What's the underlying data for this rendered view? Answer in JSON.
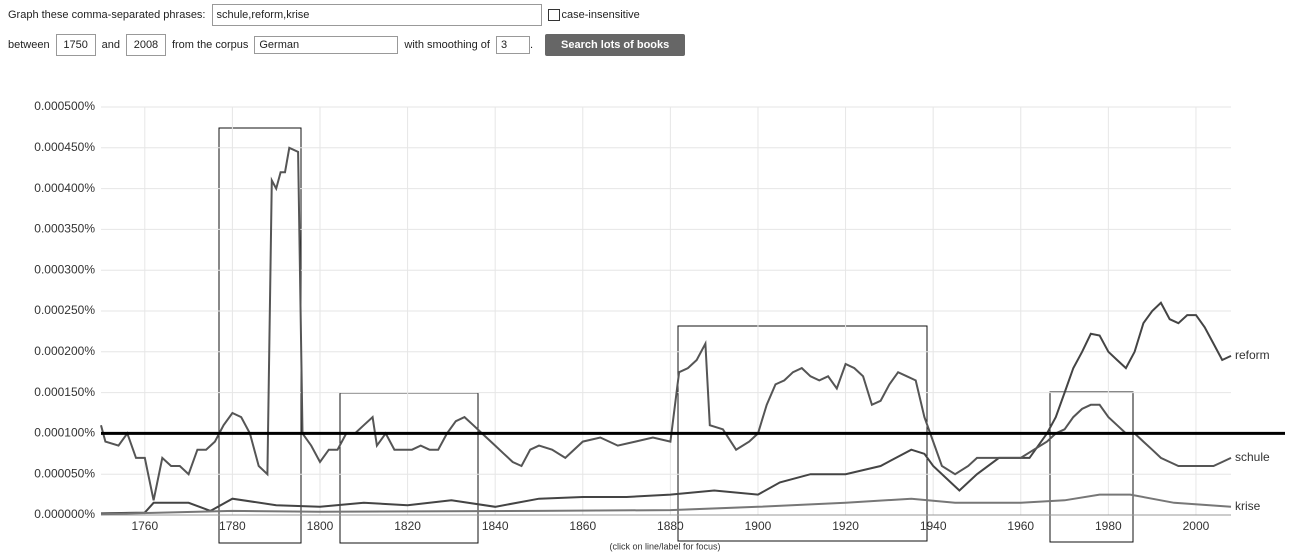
{
  "form": {
    "phrases_label": "Graph these comma-separated phrases:",
    "phrases": "schule,reform,krise",
    "case_label": "case-insensitive",
    "between": "between",
    "start_year": "1750",
    "and": "and",
    "end_year": "2008",
    "corpus_label": "from the corpus",
    "corpus": "German",
    "smoothing_label": "with smoothing of",
    "smoothing": "3",
    "period": ".",
    "button": "Search lots of books"
  },
  "footer": "(click on line/label for focus)",
  "chart_data": {
    "type": "line",
    "xlim": [
      1750,
      2008
    ],
    "xticks": [
      1760,
      1780,
      1800,
      1820,
      1840,
      1860,
      1880,
      1900,
      1920,
      1940,
      1960,
      1980,
      2000
    ],
    "ylim": [
      0,
      0.0005
    ],
    "yticks": [
      {
        "value": 0,
        "label": "0.000000%"
      },
      {
        "value": 5e-05,
        "label": "0.000050%"
      },
      {
        "value": 0.0001,
        "label": "0.000100%"
      },
      {
        "value": 0.00015,
        "label": "0.000150%"
      },
      {
        "value": 0.0002,
        "label": "0.000200%"
      },
      {
        "value": 0.00025,
        "label": "0.000250%"
      },
      {
        "value": 0.0003,
        "label": "0.000300%"
      },
      {
        "value": 0.00035,
        "label": "0.000350%"
      },
      {
        "value": 0.0004,
        "label": "0.000400%"
      },
      {
        "value": 0.00045,
        "label": "0.000450%"
      },
      {
        "value": 0.0005,
        "label": "0.000500%"
      }
    ],
    "grid": true,
    "reference_line": 0.0001,
    "series": [
      {
        "name": "reform",
        "color": "#444444",
        "x": [
          1750,
          1760,
          1762,
          1770,
          1775,
          1780,
          1790,
          1800,
          1810,
          1820,
          1830,
          1840,
          1850,
          1860,
          1870,
          1880,
          1890,
          1900,
          1905,
          1912,
          1920,
          1928,
          1935,
          1938,
          1940,
          1944,
          1946,
          1950,
          1955,
          1962,
          1966,
          1968,
          1970,
          1972,
          1974,
          1976,
          1978,
          1980,
          1982,
          1984,
          1986,
          1988,
          1990,
          1992,
          1994,
          1996,
          1998,
          2000,
          2002,
          2004,
          2006,
          2008
        ],
        "values": [
          2e-06,
          3e-06,
          1.5e-05,
          1.5e-05,
          5e-06,
          2e-05,
          1.2e-05,
          1e-05,
          1.5e-05,
          1.2e-05,
          1.8e-05,
          1e-05,
          2e-05,
          2.2e-05,
          2.2e-05,
          2.5e-05,
          3e-05,
          2.5e-05,
          4e-05,
          5e-05,
          5e-05,
          6e-05,
          8e-05,
          7.5e-05,
          6e-05,
          4e-05,
          3e-05,
          5e-05,
          7e-05,
          7e-05,
          0.0001,
          0.00012,
          0.00015,
          0.00018,
          0.0002,
          0.000222,
          0.00022,
          0.0002,
          0.00019,
          0.00018,
          0.0002,
          0.000235,
          0.00025,
          0.00026,
          0.00024,
          0.000235,
          0.000245,
          0.000245,
          0.00023,
          0.00021,
          0.00019,
          0.000195
        ]
      },
      {
        "name": "schule",
        "color": "#555555",
        "x": [
          1750,
          1751,
          1754,
          1756,
          1758,
          1760,
          1762,
          1764,
          1766,
          1768,
          1770,
          1772,
          1774,
          1776,
          1778,
          1780,
          1782,
          1784,
          1786,
          1788,
          1789,
          1790,
          1791,
          1792,
          1793,
          1795,
          1796,
          1798,
          1800,
          1802,
          1804,
          1806,
          1808,
          1810,
          1812,
          1813,
          1815,
          1817,
          1819,
          1821,
          1823,
          1825,
          1827,
          1829,
          1831,
          1833,
          1835,
          1837,
          1840,
          1842,
          1844,
          1846,
          1848,
          1850,
          1853,
          1856,
          1860,
          1864,
          1868,
          1872,
          1876,
          1880,
          1882,
          1884,
          1886,
          1888,
          1889,
          1892,
          1895,
          1898,
          1900,
          1902,
          1904,
          1906,
          1908,
          1910,
          1912,
          1914,
          1916,
          1918,
          1920,
          1922,
          1924,
          1926,
          1928,
          1930,
          1932,
          1934,
          1936,
          1938,
          1940,
          1942,
          1945,
          1948,
          1950,
          1955,
          1960,
          1963,
          1966,
          1968,
          1970,
          1972,
          1974,
          1976,
          1978,
          1980,
          1982,
          1984,
          1986,
          1988,
          1990,
          1992,
          1994,
          1996,
          1998,
          2000,
          2002,
          2004,
          2006,
          2008
        ],
        "values": [
          0.00011,
          9e-05,
          8.5e-05,
          0.0001,
          7e-05,
          7e-05,
          1.8e-05,
          7e-05,
          6e-05,
          6e-05,
          5e-05,
          8e-05,
          8e-05,
          9e-05,
          0.00011,
          0.000125,
          0.00012,
          0.0001,
          6e-05,
          5e-05,
          0.00041,
          0.0004,
          0.00042,
          0.00042,
          0.00045,
          0.000445,
          0.0001,
          8.5e-05,
          6.5e-05,
          8e-05,
          8e-05,
          0.0001,
          0.0001,
          0.00011,
          0.00012,
          8.5e-05,
          0.0001,
          8e-05,
          8e-05,
          8e-05,
          8.5e-05,
          8e-05,
          8e-05,
          0.0001,
          0.000115,
          0.00012,
          0.00011,
          0.0001,
          8.5e-05,
          7.5e-05,
          6.5e-05,
          6e-05,
          8e-05,
          8.5e-05,
          8e-05,
          7e-05,
          9e-05,
          9.5e-05,
          8.5e-05,
          9e-05,
          9.5e-05,
          9e-05,
          0.000175,
          0.00018,
          0.00019,
          0.00021,
          0.00011,
          0.000105,
          8e-05,
          9e-05,
          0.0001,
          0.000135,
          0.00016,
          0.000165,
          0.000175,
          0.00018,
          0.00017,
          0.000165,
          0.00017,
          0.000155,
          0.000185,
          0.00018,
          0.00017,
          0.000135,
          0.00014,
          0.00016,
          0.000175,
          0.00017,
          0.000165,
          0.00012,
          9e-05,
          6e-05,
          5e-05,
          6e-05,
          7e-05,
          7e-05,
          7e-05,
          8e-05,
          9e-05,
          0.0001,
          0.000105,
          0.00012,
          0.00013,
          0.000135,
          0.000135,
          0.00012,
          0.00011,
          0.0001,
          0.0001,
          9e-05,
          8e-05,
          7e-05,
          6.5e-05,
          6e-05,
          6e-05,
          6e-05,
          6e-05,
          6e-05,
          6.5e-05,
          7e-05
        ]
      },
      {
        "name": "krise",
        "color": "#777777",
        "x": [
          1750,
          1780,
          1800,
          1850,
          1880,
          1900,
          1920,
          1935,
          1945,
          1960,
          1970,
          1978,
          1985,
          1995,
          2008
        ],
        "values": [
          1e-06,
          5e-06,
          4e-06,
          5e-06,
          6e-06,
          1e-05,
          1.5e-05,
          2e-05,
          1.5e-05,
          1.5e-05,
          1.8e-05,
          2.5e-05,
          2.5e-05,
          1.5e-05,
          1e-05
        ]
      }
    ]
  }
}
